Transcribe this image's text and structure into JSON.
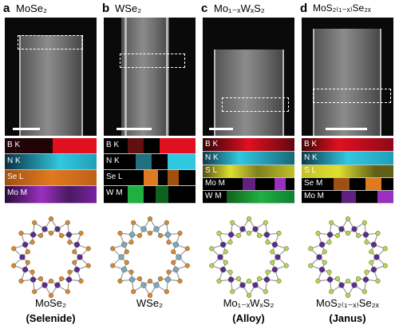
{
  "panels": [
    {
      "letter": "a",
      "title": "MoSe₂",
      "eels_labels": [
        "B K",
        "N K",
        "Se L",
        "Mo M"
      ],
      "eels_colors": [
        "#e01020",
        "#30c8e0",
        "#e07a20",
        "#9a30c0"
      ],
      "ring_colors": {
        "metal": "#5a2e8a",
        "chalcogen": "#d9892a"
      },
      "caption_line1": "MoSe₂",
      "caption_line2": "(Selenide)"
    },
    {
      "letter": "b",
      "title": "WSe₂",
      "eels_labels": [
        "B K",
        "N K",
        "Se L",
        "W M"
      ],
      "eels_colors": [
        "#e01020",
        "#30c8e0",
        "#e07a20",
        "#20b040"
      ],
      "ring_colors": {
        "metal": "#7ea8b8",
        "chalcogen": "#d9892a"
      },
      "caption_line1": "WSe₂",
      "caption_line2": ""
    },
    {
      "letter": "c",
      "title": "Mo₁₋ₓWₓS₂",
      "eels_labels": [
        "B K",
        "N K",
        "S L",
        "Mo M",
        "W M"
      ],
      "eels_colors": [
        "#e01020",
        "#30c8e0",
        "#e0e030",
        "#9a30c0",
        "#20b040"
      ],
      "ring_colors": {
        "metal": "#5a2e8a",
        "chalcogen": "#b7d64a"
      },
      "caption_line1": "Mo₁₋ₓWₓS₂",
      "caption_line2": "(Alloy)"
    },
    {
      "letter": "d",
      "title": "MoS₂₍₁₋ₓ₎Se₂ₓ",
      "eels_labels": [
        "B K",
        "N K",
        "S L",
        "Se M",
        "Mo M"
      ],
      "eels_colors": [
        "#e01020",
        "#30c8e0",
        "#e0e030",
        "#e07a20",
        "#9a30c0"
      ],
      "ring_colors": {
        "metal": "#5a2e8a",
        "chalcogen": "#b7d64a"
      },
      "caption_line1": "MoS₂₍₁₋ₓ₎Se₂ₓ",
      "caption_line2": "(Janus)"
    }
  ]
}
